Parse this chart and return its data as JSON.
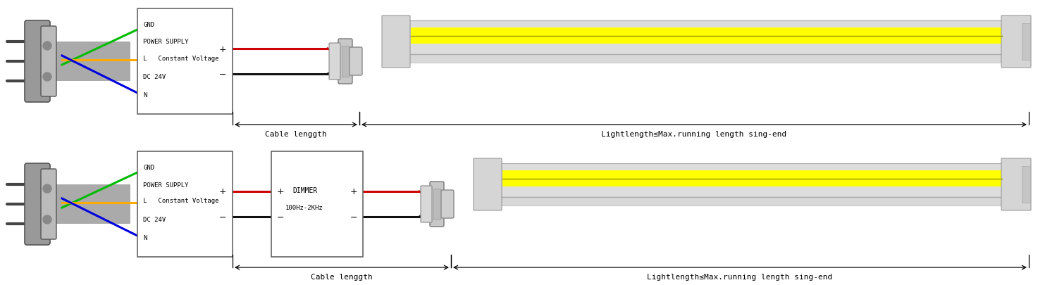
{
  "bg_color": "#ffffff",
  "diagram1": {
    "cable_label": "Cable lenggth",
    "light_label": "Lightlength≤Max.running length sing-end"
  },
  "diagram2": {
    "cable_label": "Cable lenggth",
    "light_label": "Lightlength≤Max.running length sing-end"
  },
  "colors": {
    "green": "#00bb00",
    "orange": "#ffaa00",
    "blue": "#0000dd",
    "red": "#cc0000",
    "black": "#111111",
    "gray": "#888888",
    "light_gray": "#cccccc",
    "mid_gray": "#aaaaaa",
    "yellow": "#ffff00",
    "dark_gray": "#555555",
    "box_border": "#666666",
    "plug_body": "#999999",
    "plug_face": "#bbbbbb",
    "tube_body": "#dddddd",
    "tube_edge": "#aaaaaa",
    "cap_face": "#d0d0d0",
    "wire_gray": "#aaaaaa"
  }
}
